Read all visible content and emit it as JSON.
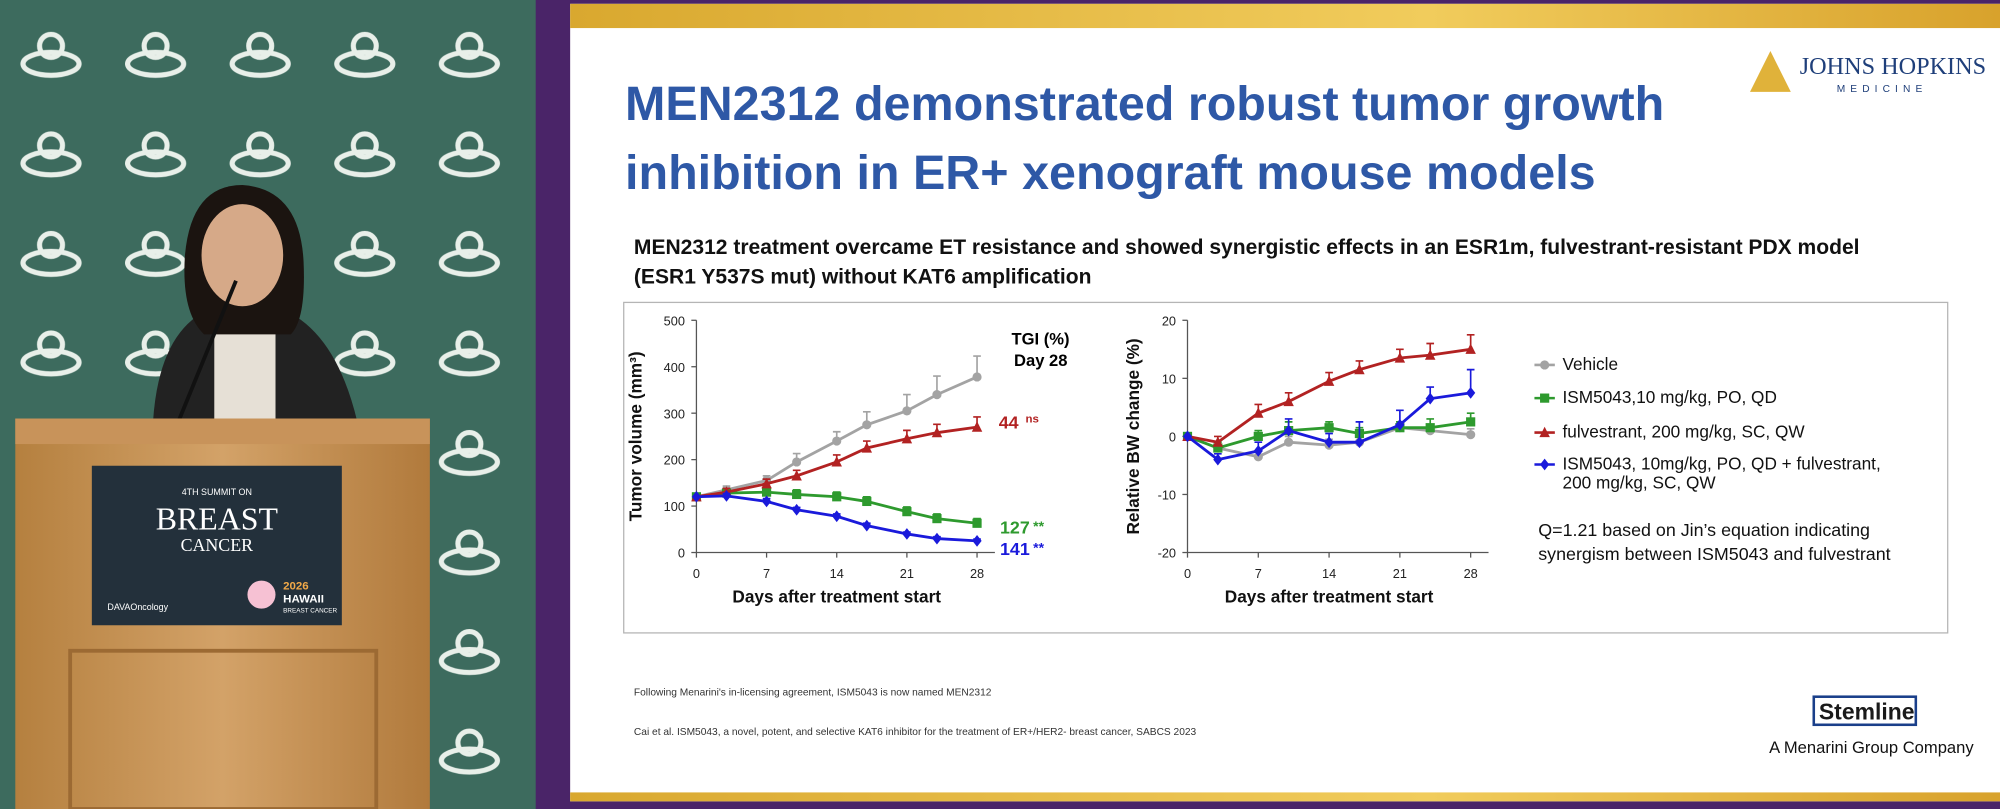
{
  "video": {
    "sign_lines": [
      "4TH SUMMIT ON",
      "BREAST",
      "CANCER"
    ],
    "sign_left_logo": "DAVAOncology",
    "sign_right_year": "2026",
    "sign_right_lines": [
      "HAWAII",
      "BREAST CANCER"
    ]
  },
  "slide": {
    "logo_top": "JOHNS HOPKINS",
    "logo_top_sub": "MEDICINE",
    "title_lines": [
      "MEN2312 demonstrated robust tumor growth",
      "inhibition in ER+ xenograft mouse models"
    ],
    "subtitle_lines": [
      "MEN2312 treatment overcame ET resistance and showed synergistic effects in an ESR1m, fulvestrant-resistant PDX model",
      "(ESR1 Y537S mut) without KAT6 amplification"
    ],
    "footnotes": [
      "Following Menarini's in-licensing agreement, ISM5043 is now named MEN2312",
      "Cai et al. ISM5043, a novel, potent, and selective KAT6 inhibitor for the treatment of ER+/HER2- breast cancer, SABCS 2023"
    ],
    "logo_bottom": "Stemline",
    "logo_bottom_sub": "A Menarini Group Company"
  },
  "chart_data": [
    {
      "type": "line",
      "x_label": "Days after treatment start",
      "y_label": "Tumor volume (mm³)",
      "x": [
        0,
        3,
        7,
        10,
        14,
        17,
        21,
        24,
        28
      ],
      "xlim": [
        0,
        28
      ],
      "xticks": [
        0,
        7,
        14,
        21,
        28
      ],
      "ylim": [
        0,
        500
      ],
      "yticks": [
        0,
        100,
        200,
        300,
        400,
        500
      ],
      "series": [
        {
          "color": "#a3a3a3",
          "marker": "circle",
          "values": [
            120,
            135,
            155,
            195,
            240,
            275,
            305,
            340,
            378
          ],
          "errors": [
            0,
            8,
            10,
            18,
            20,
            28,
            35,
            40,
            45
          ]
        },
        {
          "color": "#2e9a2e",
          "marker": "square",
          "values": [
            120,
            128,
            130,
            125,
            120,
            110,
            88,
            73,
            63
          ],
          "errors": [
            0,
            6,
            8,
            10,
            10,
            10,
            10,
            10,
            10
          ]
        },
        {
          "color": "#b22222",
          "marker": "triangle",
          "values": [
            120,
            130,
            148,
            165,
            195,
            225,
            245,
            258,
            270
          ],
          "errors": [
            0,
            8,
            10,
            12,
            15,
            15,
            18,
            18,
            22
          ]
        },
        {
          "color": "#1a1adb",
          "marker": "diamond",
          "values": [
            120,
            122,
            110,
            92,
            78,
            58,
            40,
            30,
            25
          ],
          "errors": [
            0,
            5,
            6,
            5,
            5,
            5,
            4,
            4,
            4
          ]
        }
      ],
      "annotations": [
        {
          "text": "TGI (%)",
          "color": "#000000"
        },
        {
          "text": "Day 28",
          "color": "#000000"
        },
        {
          "text": "44",
          "color": "#b22222"
        },
        {
          "text": "ns",
          "color": "#b22222"
        },
        {
          "text": "127",
          "color": "#2e9a2e"
        },
        {
          "text": "**",
          "color": "#2e9a2e"
        },
        {
          "text": "141",
          "color": "#1a1adb"
        },
        {
          "text": "**",
          "color": "#1a1adb"
        }
      ]
    },
    {
      "type": "line",
      "x_label": "Days after treatment start",
      "y_label": "Relative BW change (%)",
      "x": [
        0,
        3,
        7,
        10,
        14,
        17,
        21,
        24,
        28
      ],
      "xlim": [
        0,
        28
      ],
      "xticks": [
        0,
        7,
        14,
        21,
        28
      ],
      "ylim": [
        -20,
        20
      ],
      "yticks": [
        -20,
        -10,
        0,
        10,
        20
      ],
      "legend": "right",
      "series": [
        {
          "name": "Vehicle",
          "color": "#a3a3a3",
          "marker": "circle",
          "values": [
            0,
            -2,
            -3.5,
            -1,
            -1.5,
            -1,
            1.5,
            1,
            0.3
          ],
          "errors": [
            0,
            1,
            1,
            1,
            1,
            1,
            1,
            1,
            1
          ]
        },
        {
          "name": "ISM5043,10 mg/kg, PO, QD",
          "color": "#2e9a2e",
          "marker": "square",
          "values": [
            0,
            -2,
            0,
            1,
            1.5,
            0.5,
            1.5,
            1.5,
            2.5
          ],
          "errors": [
            0,
            1,
            1,
            1.5,
            1,
            1,
            1,
            1.5,
            1.5
          ]
        },
        {
          "name": "fulvestrant, 200 mg/kg, SC, QW",
          "color": "#b22222",
          "marker": "triangle",
          "values": [
            0,
            -1,
            4,
            6,
            9.5,
            11.5,
            13.5,
            14,
            15
          ],
          "errors": [
            0,
            1,
            1.5,
            1.5,
            1.5,
            1.5,
            1.5,
            2,
            2.5
          ]
        },
        {
          "name": "ISM5043, 10mg/kg, PO, QD + fulvestrant, 200 mg/kg, SC, QW",
          "color": "#1a1adb",
          "marker": "diamond",
          "values": [
            0,
            -4,
            -2.5,
            1,
            -1,
            -1,
            2,
            6.5,
            7.5
          ],
          "errors": [
            0,
            1,
            1.5,
            2,
            1.5,
            3.5,
            2.5,
            2,
            4
          ]
        }
      ],
      "note_lines": [
        "Q=1.21 based on Jin’s equation indicating",
        "synergism between ISM5043 and fulvestrant"
      ]
    }
  ]
}
